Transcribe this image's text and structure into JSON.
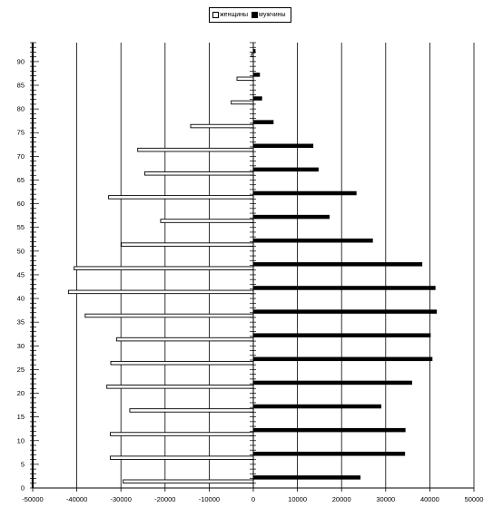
{
  "chart_data": {
    "type": "bar",
    "orientation": "horizontal",
    "title": "",
    "xlabel": "",
    "ylabel": "",
    "legend_position": "top-center",
    "xlim": [
      -50000,
      50000
    ],
    "x_ticks": [
      "-50000",
      "-40000",
      "-30000",
      "-20000",
      "-10000",
      "0",
      "10000",
      "20000",
      "30000",
      "40000",
      "50000"
    ],
    "x_tick_values": [
      -50000,
      -40000,
      -30000,
      -20000,
      -10000,
      0,
      10000,
      20000,
      30000,
      40000,
      50000
    ],
    "y_ticks": [
      "0",
      "5",
      "10",
      "15",
      "20",
      "25",
      "30",
      "35",
      "40",
      "45",
      "50",
      "55",
      "60",
      "65",
      "70",
      "75",
      "80",
      "85",
      "90"
    ],
    "y_tick_values": [
      0,
      5,
      10,
      15,
      20,
      25,
      30,
      35,
      40,
      45,
      50,
      55,
      60,
      65,
      70,
      75,
      80,
      85,
      90
    ],
    "ylim": [
      0,
      94
    ],
    "grid_x": true,
    "categories": [
      0,
      5,
      10,
      15,
      20,
      25,
      30,
      35,
      40,
      45,
      50,
      55,
      60,
      65,
      70,
      75,
      80,
      85,
      90
    ],
    "series": [
      {
        "name": "женщины",
        "color": "#ffffff",
        "values": [
          29500,
          32400,
          32400,
          28000,
          33200,
          32300,
          31000,
          38100,
          41900,
          40600,
          29900,
          21000,
          32800,
          24600,
          26200,
          14200,
          5000,
          3700,
          400
        ]
      },
      {
        "name": "мужчины",
        "color": "#000000",
        "values": [
          24200,
          34300,
          34400,
          28900,
          35900,
          40500,
          40100,
          41500,
          41200,
          38200,
          27000,
          17200,
          23300,
          14700,
          13500,
          4500,
          1900,
          1400,
          400
        ]
      }
    ]
  },
  "legend": {
    "women_label": "женщины",
    "men_label": "мужчины"
  }
}
